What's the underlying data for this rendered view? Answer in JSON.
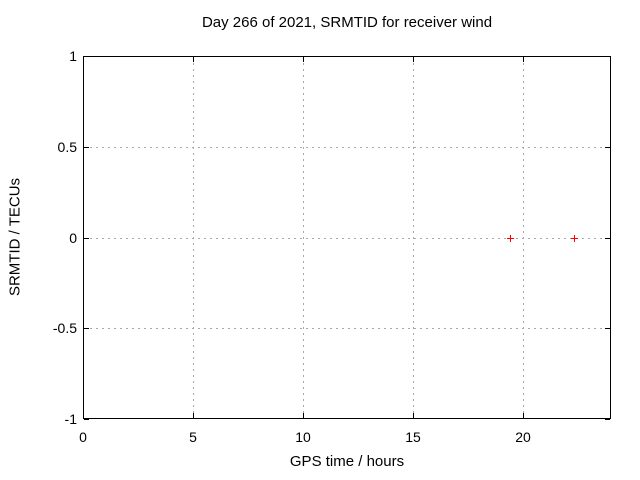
{
  "chart_data": {
    "type": "scatter",
    "title": "Day 266 of 2021, SRMTID for receiver wind",
    "xlabel": "GPS time / hours",
    "ylabel": "SRMTID / TECUs",
    "xlim": [
      0,
      24
    ],
    "ylim": [
      -1,
      1
    ],
    "xticks": [
      0,
      5,
      10,
      15,
      20
    ],
    "xtick_labels": [
      "0",
      "5",
      "10",
      "15",
      "20"
    ],
    "yticks": [
      -1,
      -0.5,
      0,
      0.5,
      1
    ],
    "ytick_labels": [
      "-1",
      "-0.5",
      "0",
      "0.5",
      "1"
    ],
    "grid": true,
    "legend_position": "none",
    "series": [
      {
        "marker": "plus",
        "color": "#ff0000",
        "points": [
          [
            19.4,
            0.0
          ],
          [
            22.3,
            0.0
          ]
        ]
      }
    ]
  },
  "colors": {
    "background": "#ffffff",
    "border": "#000000",
    "grid": "#a8a8a8",
    "text": "#000000",
    "marker": "#ff0000"
  }
}
